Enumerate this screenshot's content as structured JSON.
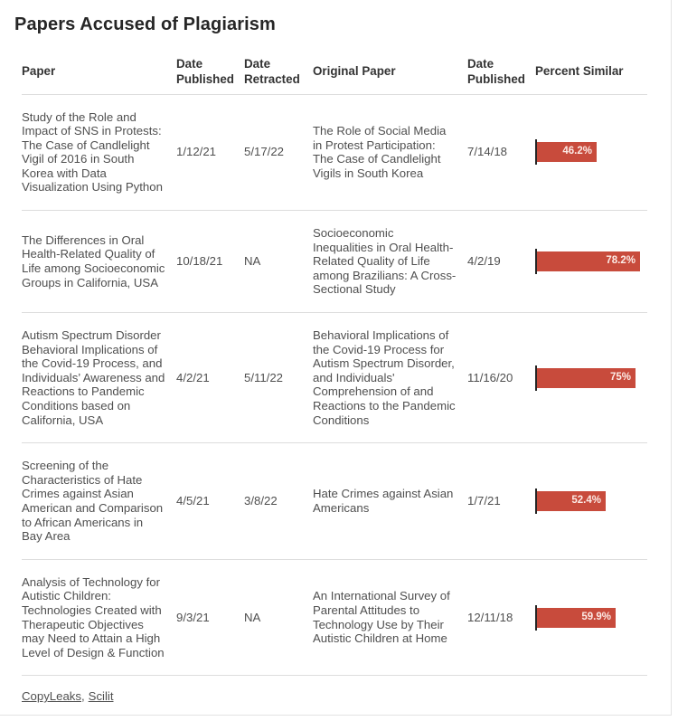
{
  "title": "Papers Accused of Plagiarism",
  "chart_data": {
    "type": "table",
    "title": "Papers Accused of Plagiarism",
    "columns": [
      "Paper",
      "Date Published",
      "Date Retracted",
      "Original Paper",
      "Date Published",
      "Percent Similar"
    ],
    "bar_column": "Percent Similar",
    "bar_range": [
      0,
      100
    ],
    "rows": [
      {
        "paper": "Study of the Role and Impact of SNS in Protests: The Case of Candlelight Vigil of 2016 in South Korea with Data Visualization Using Python",
        "date_published": "1/12/21",
        "date_retracted": "5/17/22",
        "original_paper": "The Role of Social Media in Protest Participation: The Case of Candlelight Vigils in South Korea",
        "original_date_published": "7/14/18",
        "percent_similar": 46.2,
        "percent_label": "46.2%"
      },
      {
        "paper": "The Differences in Oral Health-Related Quality of Life among Socioeconomic Groups in California, USA",
        "date_published": "10/18/21",
        "date_retracted": "NA",
        "original_paper": "Socioeconomic Inequalities in Oral Health-Related Quality of Life among Brazilians: A Cross-Sectional Study",
        "original_date_published": "4/2/19",
        "percent_similar": 78.2,
        "percent_label": "78.2%"
      },
      {
        "paper": "Autism Spectrum Disorder Behavioral Implications of the Covid-19 Process, and Individuals’ Awareness and Reactions to Pandemic Conditions based on California, USA",
        "date_published": "4/2/21",
        "date_retracted": "5/11/22",
        "original_paper": "Behavioral Implications of the Covid-19 Process for Autism Spectrum Disorder, and Individuals' Comprehension of and Reactions to the Pandemic Conditions",
        "original_date_published": "11/16/20",
        "percent_similar": 75,
        "percent_label": "75%"
      },
      {
        "paper": "Screening of the Characteristics of Hate Crimes against Asian American and Comparison to African Americans in Bay Area",
        "date_published": "4/5/21",
        "date_retracted": "3/8/22",
        "original_paper": "Hate Crimes against Asian Americans",
        "original_date_published": "1/7/21",
        "percent_similar": 52.4,
        "percent_label": "52.4%"
      },
      {
        "paper": "Analysis of Technology for Autistic Children: Technologies Created with Therapeutic Objectives may Need to Attain a High Level of Design & Function",
        "date_published": "9/3/21",
        "date_retracted": "NA",
        "original_paper": "An International Survey of Parental Attitudes to Technology Use by Their Autistic Children at Home",
        "original_date_published": "12/11/18",
        "percent_similar": 59.9,
        "percent_label": "59.9%"
      }
    ]
  },
  "footer": {
    "links": [
      "CopyLeaks",
      "Scilit"
    ],
    "separator": ","
  },
  "colors": {
    "bar": "#c84b3c",
    "bar_label": "#fcebe6",
    "axis": "#262626",
    "title_text": "#262626",
    "header_text": "#333333",
    "body_text": "#4f4f4f",
    "divider": "#dddddd",
    "frame_border": "#e3e3e3",
    "background": "#ffffff"
  }
}
